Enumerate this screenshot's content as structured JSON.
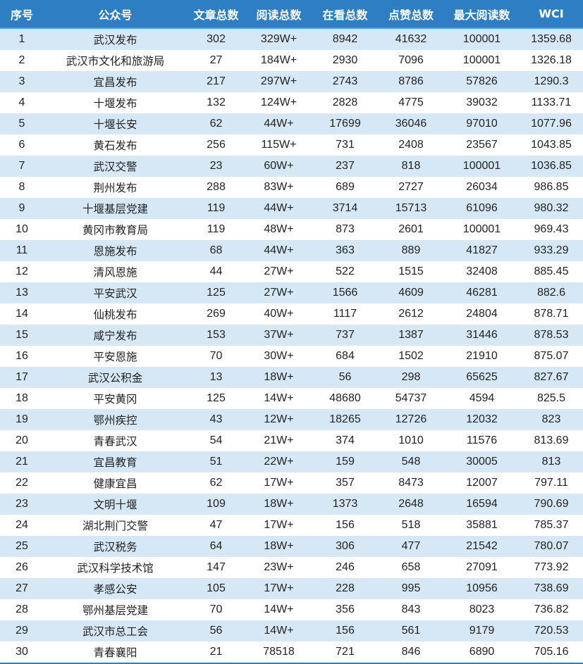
{
  "colors": {
    "header_bg": "#2E7EC4",
    "alt_row_bg": "#D6E8F5"
  },
  "headers": [
    "序号",
    "公众号",
    "文章总数",
    "阅读总数",
    "在看总数",
    "点赞总数",
    "最大阅读数",
    "WCI"
  ],
  "rows": [
    [
      "1",
      "武汉发布",
      "302",
      "329W+",
      "8942",
      "41632",
      "100001",
      "1359.68"
    ],
    [
      "2",
      "武汉市文化和旅游局",
      "27",
      "184W+",
      "2930",
      "7096",
      "100001",
      "1326.18"
    ],
    [
      "3",
      "宜昌发布",
      "217",
      "297W+",
      "2743",
      "8786",
      "57826",
      "1290.3"
    ],
    [
      "4",
      "十堰发布",
      "132",
      "124W+",
      "2828",
      "4775",
      "39032",
      "1133.71"
    ],
    [
      "5",
      "十堰长安",
      "62",
      "44W+",
      "17699",
      "36046",
      "97010",
      "1077.96"
    ],
    [
      "6",
      "黄石发布",
      "256",
      "115W+",
      "731",
      "2408",
      "23567",
      "1043.85"
    ],
    [
      "7",
      "武汉交警",
      "23",
      "60W+",
      "237",
      "818",
      "100001",
      "1036.85"
    ],
    [
      "8",
      "荆州发布",
      "288",
      "83W+",
      "689",
      "2727",
      "26034",
      "986.85"
    ],
    [
      "9",
      "十堰基层党建",
      "119",
      "44W+",
      "3714",
      "15713",
      "61096",
      "980.32"
    ],
    [
      "10",
      "黄冈市教育局",
      "119",
      "48W+",
      "873",
      "2601",
      "100001",
      "969.43"
    ],
    [
      "11",
      "恩施发布",
      "68",
      "44W+",
      "363",
      "889",
      "41827",
      "933.29"
    ],
    [
      "12",
      "清风恩施",
      "44",
      "27W+",
      "522",
      "1515",
      "32408",
      "885.45"
    ],
    [
      "13",
      "平安武汉",
      "125",
      "27W+",
      "1566",
      "4609",
      "46281",
      "882.6"
    ],
    [
      "14",
      "仙桃发布",
      "269",
      "40W+",
      "1117",
      "2612",
      "24804",
      "878.71"
    ],
    [
      "15",
      "咸宁发布",
      "153",
      "37W+",
      "737",
      "1387",
      "31446",
      "878.53"
    ],
    [
      "16",
      "平安恩施",
      "70",
      "30W+",
      "684",
      "1502",
      "21910",
      "875.07"
    ],
    [
      "17",
      "武汉公积金",
      "13",
      "18W+",
      "56",
      "298",
      "65625",
      "827.67"
    ],
    [
      "18",
      "平安黄冈",
      "125",
      "14W+",
      "48680",
      "54737",
      "4594",
      "825.5"
    ],
    [
      "19",
      "鄂州疾控",
      "43",
      "12W+",
      "18265",
      "12726",
      "12032",
      "823"
    ],
    [
      "20",
      "青春武汉",
      "54",
      "21W+",
      "374",
      "1010",
      "11576",
      "813.69"
    ],
    [
      "21",
      "宜昌教育",
      "51",
      "22W+",
      "159",
      "548",
      "30005",
      "813"
    ],
    [
      "22",
      "健康宜昌",
      "62",
      "17W+",
      "357",
      "8473",
      "12007",
      "797.11"
    ],
    [
      "23",
      "文明十堰",
      "109",
      "18W+",
      "1373",
      "2648",
      "16594",
      "790.69"
    ],
    [
      "24",
      "湖北荆门交警",
      "47",
      "17W+",
      "156",
      "518",
      "35881",
      "785.37"
    ],
    [
      "25",
      "武汉税务",
      "64",
      "18W+",
      "306",
      "477",
      "21542",
      "780.07"
    ],
    [
      "26",
      "武汉科学技术馆",
      "147",
      "23W+",
      "246",
      "658",
      "27091",
      "773.92"
    ],
    [
      "27",
      "孝感公安",
      "105",
      "17W+",
      "228",
      "995",
      "10956",
      "738.69"
    ],
    [
      "28",
      "鄂州基层党建",
      "70",
      "14W+",
      "356",
      "843",
      "8023",
      "736.82"
    ],
    [
      "29",
      "武汉市总工会",
      "56",
      "14W+",
      "156",
      "561",
      "9179",
      "720.53"
    ],
    [
      "30",
      "青春襄阳",
      "21",
      "78518",
      "721",
      "846",
      "6890",
      "705.16"
    ]
  ]
}
